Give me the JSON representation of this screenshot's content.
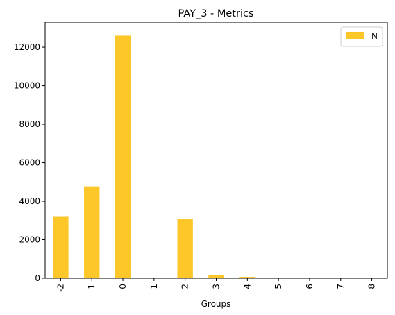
{
  "chart_data": {
    "type": "bar",
    "title": "PAY_3 - Metrics",
    "xlabel": "Groups",
    "ylabel": "",
    "categories": [
      "-2",
      "-1",
      "0",
      "1",
      "2",
      "3",
      "4",
      "5",
      "6",
      "7",
      "8"
    ],
    "series": [
      {
        "name": "N",
        "values": [
          3190,
          4770,
          12600,
          3,
          3080,
          180,
          70,
          25,
          20,
          25,
          2
        ]
      }
    ],
    "ylim": [
      0,
      13300
    ],
    "yticks": [
      0,
      2000,
      4000,
      6000,
      8000,
      10000,
      12000
    ],
    "grid": false,
    "legend": "top-right",
    "colors": {
      "bar": "#fdc72a",
      "axis": "#000000"
    }
  }
}
